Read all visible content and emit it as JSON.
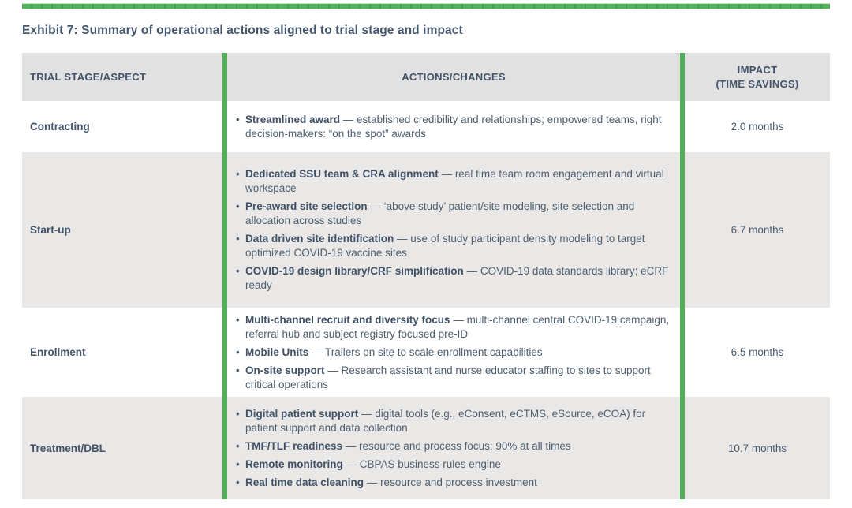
{
  "title": "Exhibit 7: Summary of operational actions aligned to trial stage and impact",
  "colors": {
    "accent_green": "#51b057",
    "header_bg": "#e2e1e1",
    "alt_row_bg": "#e9e8e6",
    "text_dark": "#42536a",
    "text_body": "#4d5e70"
  },
  "table": {
    "headers": {
      "stage": "TRIAL STAGE/ASPECT",
      "actions": "ACTIONS/CHANGES",
      "impact": "IMPACT\n(TIME SAVINGS)"
    },
    "rows": [
      {
        "stage": "Contracting",
        "impact": "2.0 months",
        "actions": [
          {
            "lead": "Streamlined award",
            "detail": " — established credibility and relationships; empowered teams, right decision-makers: “on the spot” awards"
          }
        ]
      },
      {
        "stage": "Start-up",
        "impact": "6.7 months",
        "actions": [
          {
            "lead": "Dedicated SSU team & CRA alignment",
            "detail": " — real time team room engagement and virtual workspace"
          },
          {
            "lead": "Pre-award site selection",
            "detail": " — ‘above study’ patient/site modeling, site selection and allocation across studies"
          },
          {
            "lead": "Data driven site identification",
            "detail": " — use of study participant density modeling to target optimized COVID-19 vaccine sites"
          },
          {
            "lead": "COVID-19 design library/CRF simplification",
            "detail": " — COVID-19 data standards library; eCRF ready"
          }
        ]
      },
      {
        "stage": "Enrollment",
        "impact": "6.5 months",
        "actions": [
          {
            "lead": "Multi-channel recruit and diversity focus",
            "detail": " — multi-channel central COVID-19 campaign, referral hub and subject registry focused pre-ID"
          },
          {
            "lead": "Mobile Units",
            "detail": " — Trailers on site to scale enrollment capabilities"
          },
          {
            "lead": "On-site support",
            "detail": " — Research assistant and nurse educator staffing to sites to support critical operations"
          }
        ]
      },
      {
        "stage": "Treatment/DBL",
        "impact": "10.7 months",
        "actions": [
          {
            "lead": "Digital patient support",
            "detail": " — digital tools (e.g., eConsent, eCTMS, eSource, eCOA) for patient support and data collection"
          },
          {
            "lead": "TMF/TLF readiness",
            "detail": " — resource and process focus: 90% at all times"
          },
          {
            "lead": "Remote monitoring",
            "detail": " — CBPAS business rules engine"
          },
          {
            "lead": "Real time data cleaning",
            "detail": " — resource and process investment"
          }
        ]
      }
    ]
  }
}
